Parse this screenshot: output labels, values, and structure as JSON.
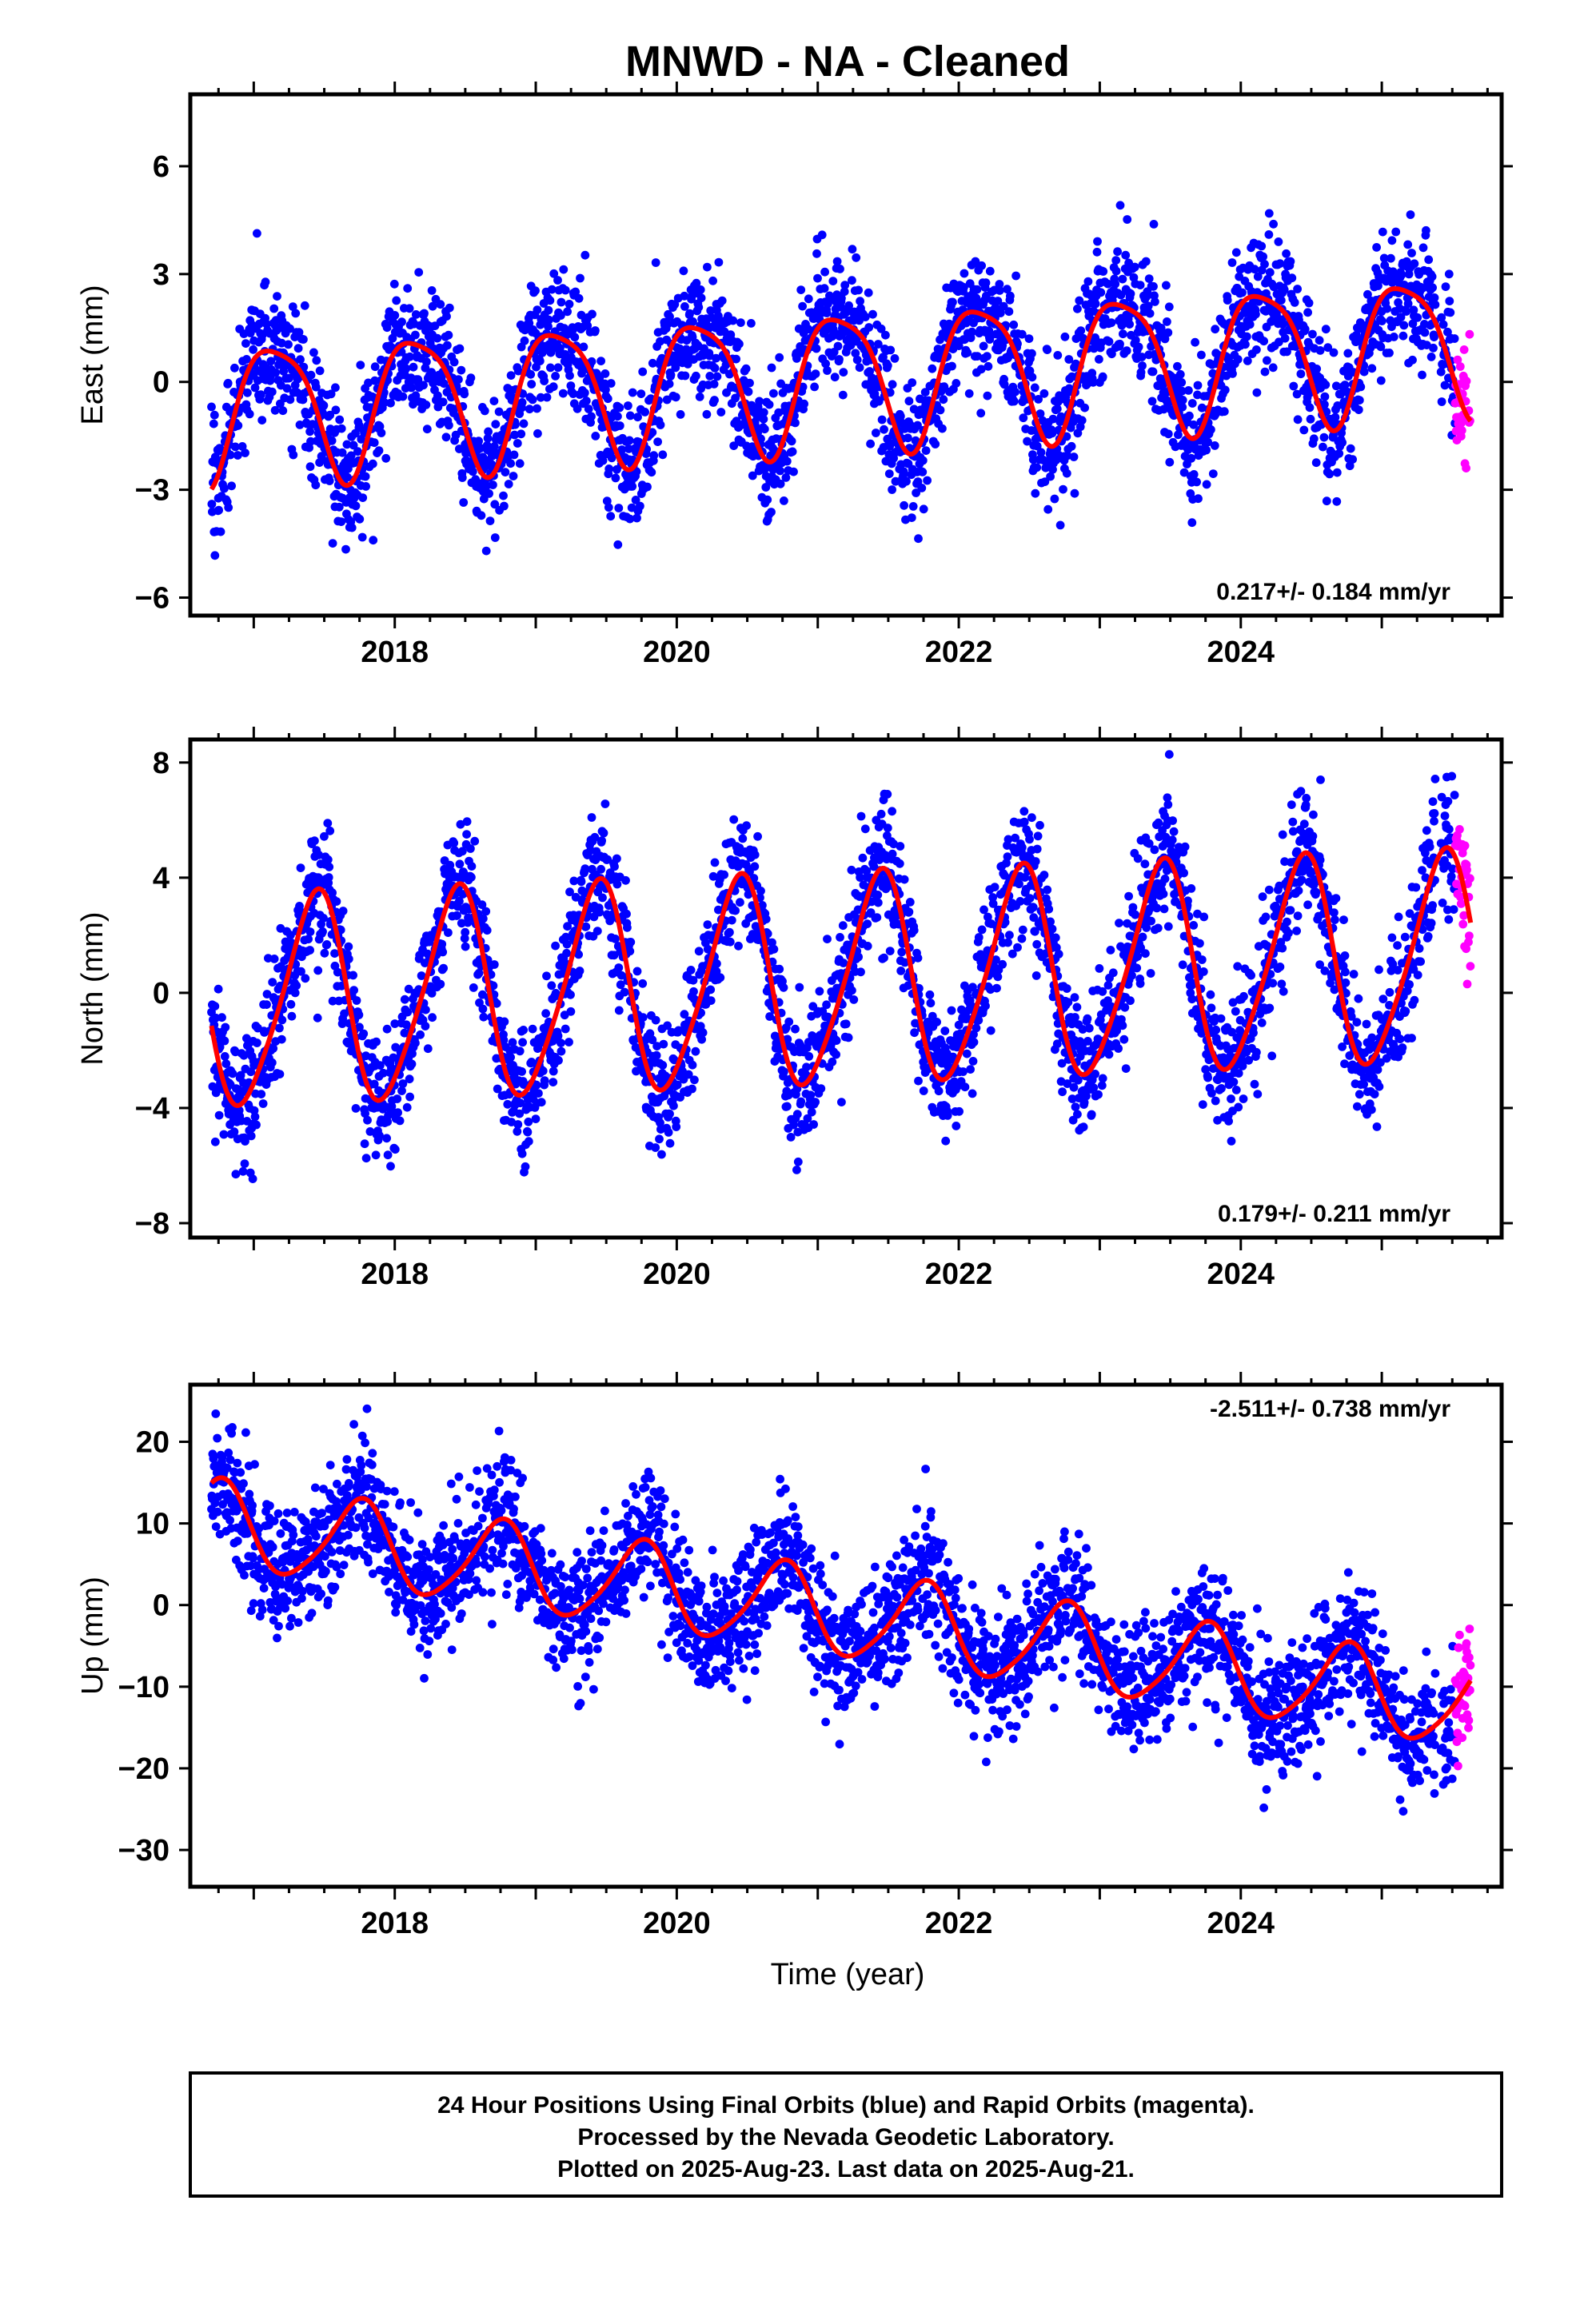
{
  "title": "MNWD  - NA - Cleaned",
  "colors": {
    "final": "#0000ff",
    "rapid": "#ff00ff",
    "model": "#ff0000",
    "frame": "#000000"
  },
  "footer": {
    "lines": [
      "24 Hour Positions Using Final Orbits (blue) and Rapid Orbits (magenta).",
      "Processed by the Nevada Geodetic Laboratory.",
      "Plotted on 2025-Aug-23. Last data on 2025-Aug-21."
    ]
  },
  "chart_data": [
    {
      "type": "scatter",
      "component": "East",
      "ylabel": "East (mm)",
      "xlim": [
        2016.55,
        2025.85
      ],
      "ylim": [
        -6.5,
        8.0
      ],
      "xticks": [
        2018,
        2020,
        2022,
        2024
      ],
      "yticks": [
        -6,
        -3,
        0,
        3,
        6
      ],
      "rate": "0.217+/- 0.184 mm/yr",
      "rate_position": "bottom-right",
      "x_start": 2016.7,
      "x_end": 2025.63,
      "rapid_start": 2025.52,
      "model": {
        "trend": 0.217,
        "offset": -0.8,
        "annual_amp": 1.9,
        "annual_phase": 2016.9,
        "semi_amp": 0.4,
        "semi_phase": 2016.8
      },
      "noise": 0.9,
      "series": [
        {
          "name": "Final Orbits",
          "color": "#0000ff"
        },
        {
          "name": "Rapid Orbits",
          "color": "#ff00ff"
        },
        {
          "name": "Model",
          "color": "#ff0000"
        }
      ]
    },
    {
      "type": "scatter",
      "component": "North",
      "ylabel": "North (mm)",
      "xlim": [
        2016.55,
        2025.85
      ],
      "ylim": [
        -8.5,
        8.8
      ],
      "xticks": [
        2018,
        2020,
        2022,
        2024
      ],
      "yticks": [
        -8,
        -4,
        0,
        4,
        8
      ],
      "rate": "0.179+/- 0.211 mm/yr",
      "rate_position": "bottom-right",
      "x_start": 2016.7,
      "x_end": 2025.63,
      "rapid_start": 2025.52,
      "model": {
        "trend": 0.179,
        "offset": -0.4,
        "annual_amp": 3.6,
        "annual_phase": 2017.18,
        "semi_amp": 0.5,
        "semi_phase": 2016.9
      },
      "noise": 1.1,
      "series": [
        {
          "name": "Final Orbits",
          "color": "#0000ff"
        },
        {
          "name": "Rapid Orbits",
          "color": "#ff00ff"
        },
        {
          "name": "Model",
          "color": "#ff0000"
        }
      ]
    },
    {
      "type": "scatter",
      "component": "Up",
      "ylabel": "Up (mm)",
      "xlabel": "Time (year)",
      "xlim": [
        2016.55,
        2025.85
      ],
      "ylim": [
        -34.5,
        27.0
      ],
      "xticks": [
        2018,
        2020,
        2022,
        2024
      ],
      "yticks": [
        -30,
        -20,
        -10,
        0,
        10,
        20
      ],
      "rate": "-2.511+/- 0.738 mm/yr",
      "rate_position": "top-right",
      "x_start": 2016.7,
      "x_end": 2025.63,
      "rapid_start": 2025.52,
      "model": {
        "trend": -2.511,
        "offset": 10.0,
        "annual_amp": 5.2,
        "annual_phase": 2016.5,
        "semi_amp": 0.8,
        "semi_phase": 2016.7
      },
      "noise": 3.8,
      "series": [
        {
          "name": "Final Orbits",
          "color": "#0000ff"
        },
        {
          "name": "Rapid Orbits",
          "color": "#ff00ff"
        },
        {
          "name": "Model",
          "color": "#ff0000"
        }
      ]
    }
  ]
}
